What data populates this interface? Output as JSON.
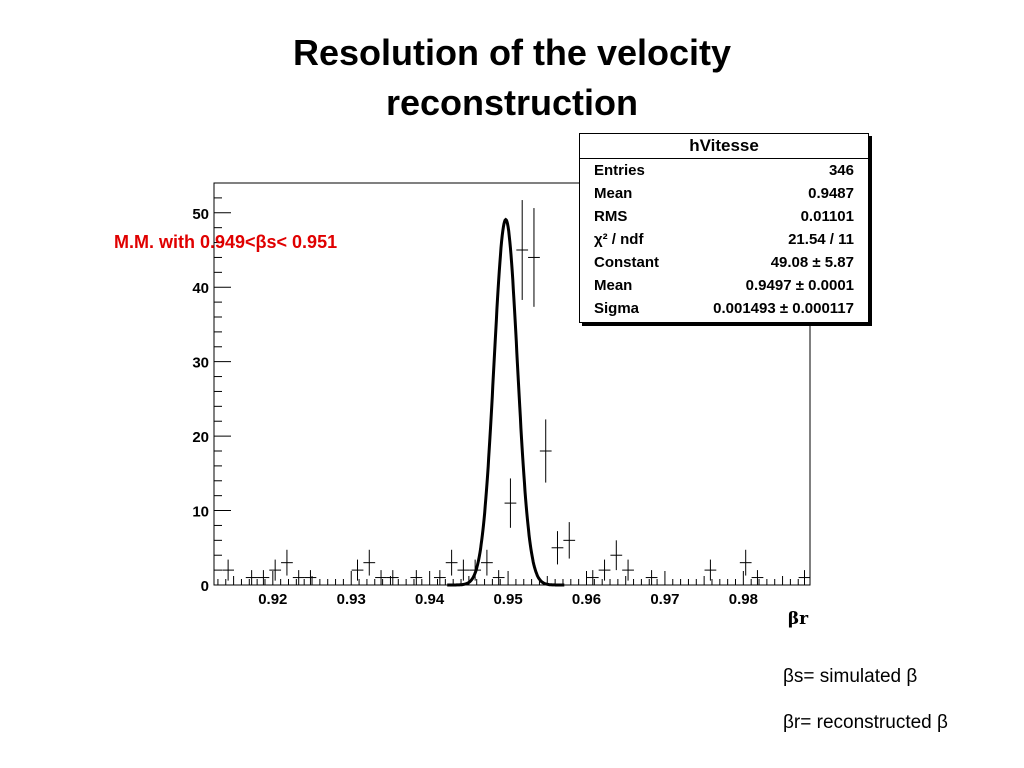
{
  "slide": {
    "title_line1": "Resolution of the velocity",
    "title_line2": "reconstruction",
    "annotation": "M.M. with 0.949<βs< 0.951",
    "notes": [
      "βs= simulated β",
      "βr= reconstructed β"
    ]
  },
  "stats_box": {
    "title": "hVitesse",
    "rows": [
      {
        "label": "Entries",
        "value": "346"
      },
      {
        "label": "Mean",
        "value": "0.9487"
      },
      {
        "label": "RMS",
        "value": "0.01101"
      },
      {
        "label": "χ² / ndf",
        "value": "21.54 / 11"
      },
      {
        "label": "Constant",
        "value": "49.08 ± 5.87"
      },
      {
        "label": "Mean",
        "value": "0.9497 ± 0.0001"
      },
      {
        "label": "Sigma",
        "value": "0.001493 ± 0.000117"
      }
    ]
  },
  "chart_data": {
    "type": "scatter",
    "title": "",
    "xlabel": "βr",
    "ylabel": "",
    "xlim": [
      0.9125,
      0.9885
    ],
    "ylim": [
      0,
      54
    ],
    "x_ticks": [
      "0.92",
      "0.93",
      "0.94",
      "0.95",
      "0.96",
      "0.97",
      "0.98"
    ],
    "y_ticks": [
      "0",
      "10",
      "20",
      "30",
      "40",
      "50"
    ],
    "bin_width": 0.0015,
    "series": [
      {
        "points": [
          {
            "x": 0.9143,
            "y": 2
          },
          {
            "x": 0.9173,
            "y": 1
          },
          {
            "x": 0.9188,
            "y": 1
          },
          {
            "x": 0.9203,
            "y": 2
          },
          {
            "x": 0.9218,
            "y": 3
          },
          {
            "x": 0.9233,
            "y": 1
          },
          {
            "x": 0.9248,
            "y": 1
          },
          {
            "x": 0.9308,
            "y": 2
          },
          {
            "x": 0.9323,
            "y": 3
          },
          {
            "x": 0.9338,
            "y": 1
          },
          {
            "x": 0.9353,
            "y": 1
          },
          {
            "x": 0.9383,
            "y": 1
          },
          {
            "x": 0.9413,
            "y": 1
          },
          {
            "x": 0.9428,
            "y": 3
          },
          {
            "x": 0.9443,
            "y": 2
          },
          {
            "x": 0.9458,
            "y": 2
          },
          {
            "x": 0.9473,
            "y": 3
          },
          {
            "x": 0.9488,
            "y": 1
          },
          {
            "x": 0.9503,
            "y": 11
          },
          {
            "x": 0.9518,
            "y": 45
          },
          {
            "x": 0.9533,
            "y": 44
          },
          {
            "x": 0.9548,
            "y": 18
          },
          {
            "x": 0.9563,
            "y": 5
          },
          {
            "x": 0.9578,
            "y": 6
          },
          {
            "x": 0.9608,
            "y": 1
          },
          {
            "x": 0.9623,
            "y": 2
          },
          {
            "x": 0.9638,
            "y": 4
          },
          {
            "x": 0.9653,
            "y": 2
          },
          {
            "x": 0.9683,
            "y": 1
          },
          {
            "x": 0.9758,
            "y": 2
          },
          {
            "x": 0.9803,
            "y": 3
          },
          {
            "x": 0.9818,
            "y": 1
          },
          {
            "x": 0.9878,
            "y": 1
          }
        ]
      }
    ],
    "fit": {
      "type": "gaussian",
      "constant": 49.08,
      "mean": 0.9497,
      "sigma": 0.001493
    }
  }
}
